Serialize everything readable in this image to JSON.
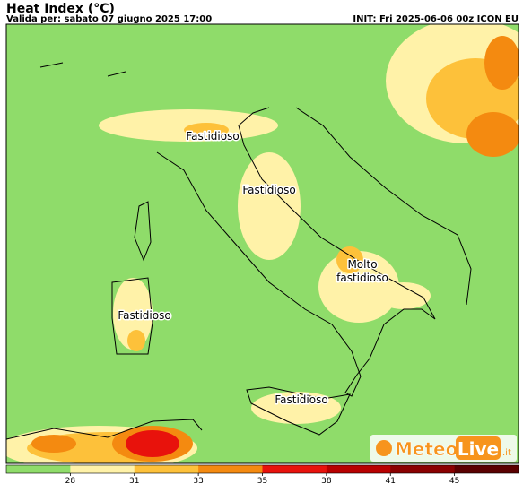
{
  "header": {
    "title": "Heat Index (°C)",
    "valid": "Valida per: sabato 07 giugno 2025 17:00",
    "init": "INIT: Fri 2025-06-06 00z ICON EU"
  },
  "labels": [
    {
      "lines": [
        "Fastidioso"
      ]
    },
    {
      "lines": [
        "Fastidioso"
      ]
    },
    {
      "lines": [
        "Molto",
        "fastidioso"
      ]
    },
    {
      "lines": [
        "Fastidioso"
      ]
    },
    {
      "lines": [
        "Fastidioso"
      ]
    }
  ],
  "legend": {
    "colors": [
      "#8fdc6a",
      "#fff2a8",
      "#fdc13a",
      "#f48a10",
      "#e8120c",
      "#b80000",
      "#8a0000",
      "#5a0000"
    ],
    "ticks": [
      28,
      31,
      33,
      35,
      38,
      41,
      45
    ]
  },
  "logo": {
    "part1": "Meteo",
    "part2": "Live",
    "part3": ".it"
  }
}
